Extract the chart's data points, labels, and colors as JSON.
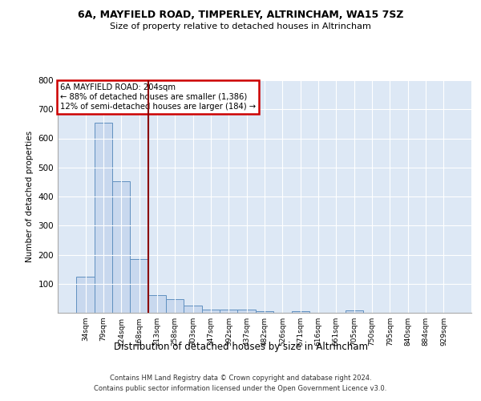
{
  "title": "6A, MAYFIELD ROAD, TIMPERLEY, ALTRINCHAM, WA15 7SZ",
  "subtitle": "Size of property relative to detached houses in Altrincham",
  "xlabel": "Distribution of detached houses by size in Altrincham",
  "ylabel": "Number of detached properties",
  "footer_line1": "Contains HM Land Registry data © Crown copyright and database right 2024.",
  "footer_line2": "Contains public sector information licensed under the Open Government Licence v3.0.",
  "annotation_line1": "6A MAYFIELD ROAD: 204sqm",
  "annotation_line2": "← 88% of detached houses are smaller (1,386)",
  "annotation_line3": "12% of semi-detached houses are larger (184) →",
  "bar_color": "#c8d8ee",
  "bar_edge_color": "#6090c0",
  "vline_color": "#8b0000",
  "annotation_box_color": "#cc0000",
  "bg_color": "#dde8f5",
  "grid_color": "#ffffff",
  "categories": [
    "34sqm",
    "79sqm",
    "124sqm",
    "168sqm",
    "213sqm",
    "258sqm",
    "303sqm",
    "347sqm",
    "392sqm",
    "437sqm",
    "482sqm",
    "526sqm",
    "571sqm",
    "616sqm",
    "661sqm",
    "705sqm",
    "750sqm",
    "795sqm",
    "840sqm",
    "884sqm",
    "929sqm"
  ],
  "values": [
    125,
    655,
    452,
    184,
    60,
    46,
    25,
    10,
    12,
    10,
    6,
    0,
    5,
    0,
    0,
    8,
    0,
    0,
    0,
    0,
    0
  ],
  "vline_x": 3.5,
  "ylim": [
    0,
    800
  ],
  "yticks": [
    0,
    100,
    200,
    300,
    400,
    500,
    600,
    700,
    800
  ]
}
